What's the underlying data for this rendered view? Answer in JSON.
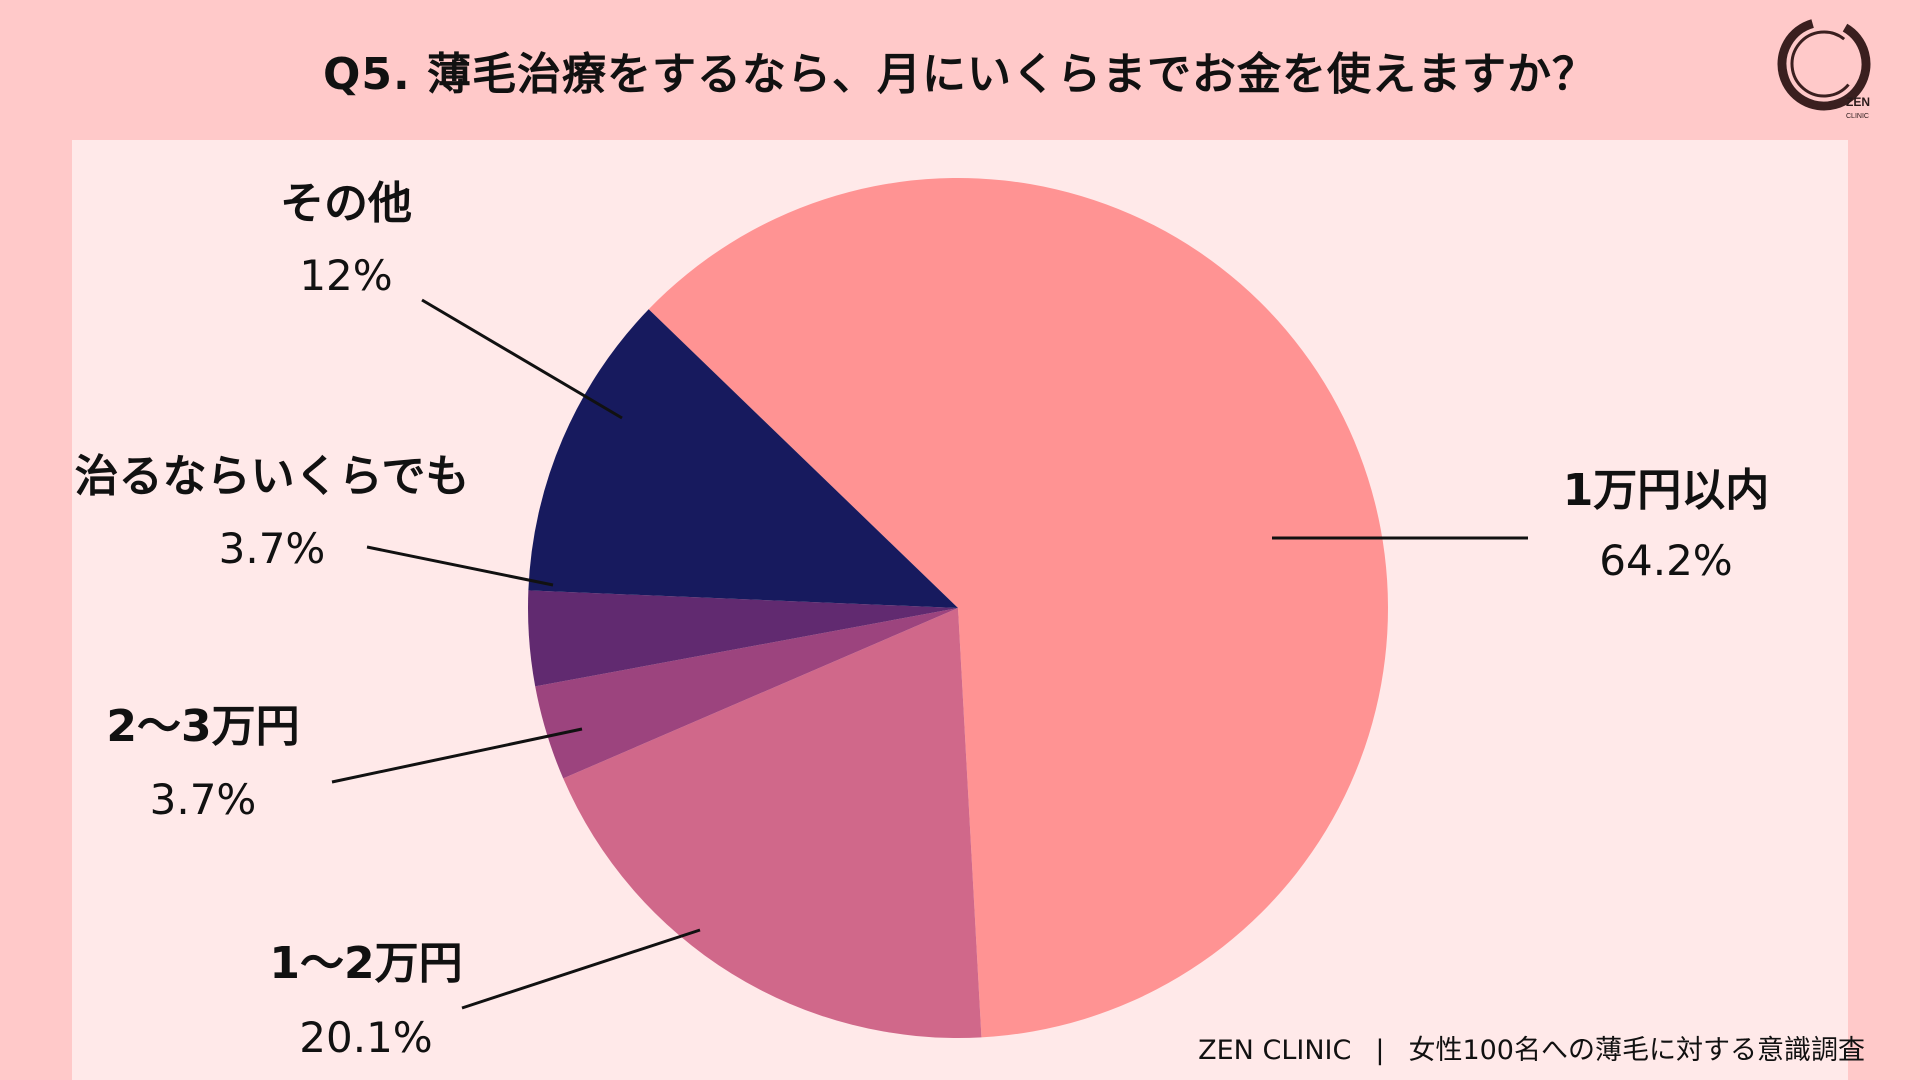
{
  "title": "Q5. 薄毛治療をするなら、月にいくらまでお金を使えますか？",
  "footer": {
    "brand": "ZEN CLINIC",
    "separator": "|",
    "survey": "女性100名への薄毛に対する意識調査"
  },
  "logo": {
    "text_top": "ZEN",
    "text_bottom": "CLINIC"
  },
  "chart_data": {
    "type": "pie",
    "title": "Q5. 薄毛治療をするなら、月にいくらまでお金を使えますか？",
    "legend": "none (labels beside slices)",
    "slices": [
      {
        "label": "1万円以内",
        "display": "64.2%",
        "value": 64.2,
        "color": "#ff9393"
      },
      {
        "label": "1〜2万円",
        "display": "20.1%",
        "value": 20.1,
        "color": "#d0688a"
      },
      {
        "label": "2〜3万円",
        "display": "3.7%",
        "value": 3.7,
        "color": "#9c447e"
      },
      {
        "label": "治るならいくらでも",
        "display": "3.7%",
        "value": 3.7,
        "color": "#612a70"
      },
      {
        "label": "その他",
        "display": "12%",
        "value": 12,
        "color": "#171a5e"
      }
    ]
  }
}
